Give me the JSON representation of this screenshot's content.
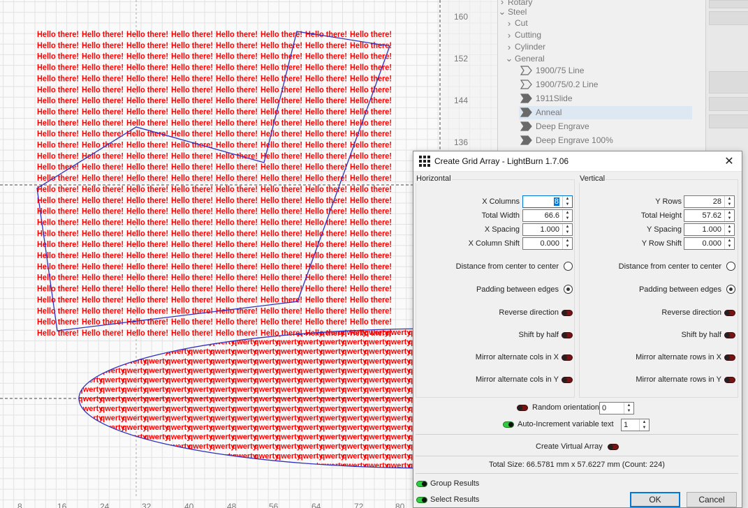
{
  "canvas": {
    "ruler_right_labels": [
      "160",
      "152",
      "144",
      "136"
    ],
    "ruler_bottom_labels": [
      "8",
      "16",
      "24",
      "32",
      "40",
      "48",
      "56",
      "64",
      "72",
      "80"
    ],
    "text_a": "Hello there!",
    "text_b": "qwerty",
    "text_color": "#ff0000",
    "outline_color": "#3030c0"
  },
  "library": {
    "items": [
      {
        "label": "Rotary",
        "type": "folder",
        "expanded": false
      },
      {
        "label": "Steel",
        "type": "folder",
        "expanded": true
      },
      {
        "label": "Cut",
        "type": "folder",
        "expanded": false
      },
      {
        "label": "Cutting",
        "type": "folder",
        "expanded": false
      },
      {
        "label": "Cylinder",
        "type": "folder",
        "expanded": false
      },
      {
        "label": "General",
        "type": "folder",
        "expanded": true
      },
      {
        "label": "1900/75 Line",
        "type": "line"
      },
      {
        "label": "1900/75/0.2 Line",
        "type": "line"
      },
      {
        "label": "1911Slide",
        "type": "fill"
      },
      {
        "label": "Anneal",
        "type": "fill",
        "selected": true
      },
      {
        "label": "Deep Engrave",
        "type": "fill"
      },
      {
        "label": "Deep Engrave 100%",
        "type": "fill"
      }
    ]
  },
  "dialog": {
    "title": "Create Grid Array - LightBurn 1.7.06",
    "horizontal": {
      "title": "Horizontal",
      "x_columns_label": "X Columns",
      "x_columns": "8",
      "total_width_label": "Total Width",
      "total_width": "66.6",
      "x_spacing_label": "X Spacing",
      "x_spacing": "1.000",
      "x_col_shift_label": "X Column Shift",
      "x_col_shift": "0.000",
      "distance_label": "Distance from center to center",
      "padding_label": "Padding between edges",
      "reverse_label": "Reverse direction",
      "shift_half_label": "Shift by half",
      "mirror_x_label": "Mirror alternate cols in X",
      "mirror_y_label": "Mirror alternate cols in Y"
    },
    "vertical": {
      "title": "Vertical",
      "y_rows_label": "Y Rows",
      "y_rows": "28",
      "total_height_label": "Total Height",
      "total_height": "57.62",
      "y_spacing_label": "Y Spacing",
      "y_spacing": "1.000",
      "y_row_shift_label": "Y Row Shift",
      "y_row_shift": "0.000",
      "distance_label": "Distance from center to center",
      "padding_label": "Padding between edges",
      "reverse_label": "Reverse direction",
      "shift_half_label": "Shift by half",
      "mirror_x_label": "Mirror alternate rows in X",
      "mirror_y_label": "Mirror alternate rows in Y"
    },
    "random_orientation_label": "Random orientation",
    "random_orientation": "0",
    "auto_increment_label": "Auto-Increment variable text",
    "auto_increment": "1",
    "virtual_array_label": "Create Virtual Array",
    "total_size": "Total Size: 66.5781 mm x 57.6227 mm  (Count: 224)",
    "group_results_label": "Group Results",
    "select_results_label": "Select Results",
    "ok_label": "OK",
    "cancel_label": "Cancel",
    "toggle_on_color": "#2ecc40",
    "toggle_off_color": "#7a1212"
  }
}
